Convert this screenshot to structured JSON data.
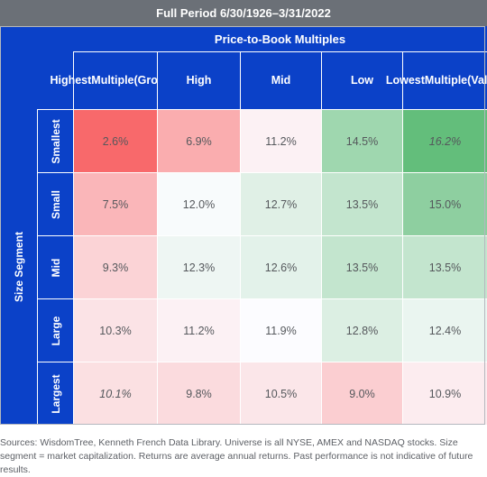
{
  "chart_data": {
    "type": "heatmap",
    "title": "Full Period 6/30/1926–3/31/2022",
    "column_group_label": "Price-to-Book Multiples",
    "row_group_label": "Size Segment",
    "columns": [
      [
        "Highest",
        "Multiple",
        "(Growth)"
      ],
      [
        "High"
      ],
      [
        "Mid"
      ],
      [
        "Low"
      ],
      [
        "Lowest",
        "Multiple",
        "(Value)"
      ]
    ],
    "rows": [
      "Smallest",
      "Small",
      "Mid",
      "Large",
      "Largest"
    ],
    "values": [
      [
        2.6,
        6.9,
        11.2,
        14.5,
        16.2
      ],
      [
        7.5,
        12.0,
        12.7,
        13.5,
        15.0
      ],
      [
        9.3,
        12.3,
        12.6,
        13.5,
        13.5
      ],
      [
        10.3,
        11.2,
        11.9,
        12.8,
        12.4
      ],
      [
        10.1,
        9.8,
        10.5,
        9.0,
        10.9
      ]
    ],
    "unit": "%",
    "italic_cells": [
      [
        0,
        4
      ],
      [
        4,
        0
      ]
    ],
    "color_scale": {
      "low": "#f8696b",
      "mid": "#fcfcff",
      "high": "#63be7b"
    },
    "colors": {
      "header": "#0b41c8",
      "title_bar": "#6b7077",
      "header_text": "#ffffff",
      "cell_text": "#55585c"
    }
  },
  "footnote": "Sources: WisdomTree, Kenneth French Data Library. Universe is all NYSE, AMEX and NASDAQ stocks. Size segment = market capitalization. Returns are average annual returns. Past performance is not indicative of future results."
}
